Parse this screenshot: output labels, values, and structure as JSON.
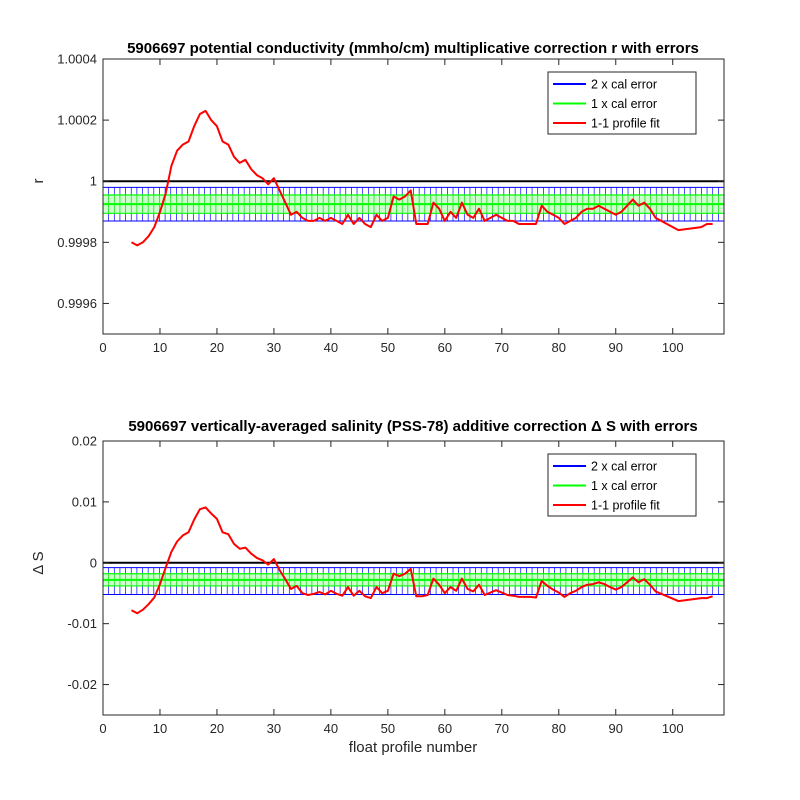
{
  "figure": {
    "xlabel": "float profile number"
  },
  "chart_data": [
    {
      "type": "line",
      "title": "5906697 potential conductivity (mmho/cm) multiplicative correction r with errors",
      "xlabel": "",
      "ylabel": "r",
      "xlim": [
        0,
        109
      ],
      "ylim": [
        0.9995,
        1.0004
      ],
      "xticks": [
        0,
        10,
        20,
        30,
        40,
        50,
        60,
        70,
        80,
        90,
        100
      ],
      "xtick_labels": [
        "0",
        "10",
        "20",
        "30",
        "40",
        "50",
        "60",
        "70",
        "80",
        "90",
        "100"
      ],
      "yticks": [
        0.9996,
        0.9998,
        1.0,
        1.0002,
        1.0004
      ],
      "ytick_labels": [
        "0.9996",
        "0.9998",
        "1",
        "1.0002",
        "1.0004"
      ],
      "reference_line": 1.0,
      "correction": 0.999925,
      "band_2x": [
        0.99987,
        0.99998
      ],
      "band_1x": [
        0.999895,
        0.999955
      ],
      "legend": {
        "position": "top-right",
        "entries": [
          {
            "label": "2 x cal error",
            "color": "#0000ff"
          },
          {
            "label": "1 x cal error",
            "color": "#00ff00"
          },
          {
            "label": "1-1 profile fit",
            "color": "#ff0000"
          }
        ]
      },
      "series": [
        {
          "color": "#ff0000",
          "x": [
            5,
            6,
            7,
            8,
            9,
            10,
            11,
            12,
            13,
            14,
            15,
            16,
            17,
            18,
            19,
            20,
            21,
            22,
            23,
            24,
            25,
            26,
            27,
            28,
            29,
            30,
            31,
            32,
            33,
            34,
            35,
            36,
            37,
            38,
            39,
            40,
            41,
            42,
            43,
            44,
            45,
            46,
            47,
            48,
            49,
            50,
            51,
            52,
            53,
            54,
            55,
            56,
            57,
            58,
            59,
            60,
            61,
            62,
            63,
            64,
            65,
            66,
            67,
            68,
            69,
            70,
            71,
            72,
            73,
            74,
            75,
            76,
            77,
            78,
            79,
            80,
            81,
            82,
            83,
            84,
            85,
            86,
            87,
            88,
            89,
            90,
            91,
            92,
            93,
            94,
            95,
            96,
            97,
            101,
            105,
            106,
            107
          ],
          "y": [
            0.9998,
            0.99979,
            0.9998,
            0.99982,
            0.99985,
            0.9999,
            0.99996,
            1.00005,
            1.0001,
            1.00012,
            1.00013,
            1.00018,
            1.00022,
            1.00023,
            1.0002,
            1.00018,
            1.00013,
            1.00012,
            1.00008,
            1.00006,
            1.00007,
            1.00004,
            1.00002,
            1.00001,
            0.99999,
            1.00001,
            0.99997,
            0.99993,
            0.99989,
            0.9999,
            0.99988,
            0.99987,
            0.99987,
            0.99988,
            0.99987,
            0.99988,
            0.99987,
            0.99986,
            0.99989,
            0.99986,
            0.99988,
            0.99986,
            0.99985,
            0.99989,
            0.99987,
            0.99988,
            0.99995,
            0.99994,
            0.99995,
            0.99997,
            0.99986,
            0.99986,
            0.99986,
            0.99993,
            0.99991,
            0.99987,
            0.9999,
            0.99988,
            0.99993,
            0.99989,
            0.99988,
            0.99991,
            0.99987,
            0.99988,
            0.99989,
            0.99988,
            0.99987,
            0.99987,
            0.99986,
            0.99986,
            0.99986,
            0.99986,
            0.99992,
            0.9999,
            0.99989,
            0.99988,
            0.99986,
            0.99987,
            0.99988,
            0.9999,
            0.99991,
            0.99991,
            0.99992,
            0.99991,
            0.9999,
            0.99989,
            0.9999,
            0.99992,
            0.99994,
            0.99992,
            0.99993,
            0.99991,
            0.99988,
            0.99984,
            0.99985,
            0.99986,
            0.99986
          ]
        }
      ]
    },
    {
      "type": "line",
      "title": "5906697 vertically-averaged salinity (PSS-78) additive correction Δ S with errors",
      "xlabel": "float profile number",
      "ylabel": "Δ S",
      "xlim": [
        0,
        109
      ],
      "ylim": [
        -0.025,
        0.02
      ],
      "xticks": [
        0,
        10,
        20,
        30,
        40,
        50,
        60,
        70,
        80,
        90,
        100
      ],
      "xtick_labels": [
        "0",
        "10",
        "20",
        "30",
        "40",
        "50",
        "60",
        "70",
        "80",
        "90",
        "100"
      ],
      "yticks": [
        -0.02,
        -0.01,
        0,
        0.01,
        0.02
      ],
      "ytick_labels": [
        "-0.02",
        "-0.01",
        "0",
        "0.01",
        "0.02"
      ],
      "reference_line": 0,
      "correction": -0.0028,
      "band_2x": [
        -0.0052,
        -0.0008
      ],
      "band_1x": [
        -0.0038,
        -0.0018
      ],
      "legend": {
        "position": "top-right",
        "entries": [
          {
            "label": "2 x cal error",
            "color": "#0000ff"
          },
          {
            "label": "1 x cal error",
            "color": "#00ff00"
          },
          {
            "label": "1-1 profile fit",
            "color": "#ff0000"
          }
        ]
      },
      "series": [
        {
          "color": "#ff0000",
          "x": [
            5,
            6,
            7,
            8,
            9,
            10,
            11,
            12,
            13,
            14,
            15,
            16,
            17,
            18,
            19,
            20,
            21,
            22,
            23,
            24,
            25,
            26,
            27,
            28,
            29,
            30,
            31,
            32,
            33,
            34,
            35,
            36,
            37,
            38,
            39,
            40,
            41,
            42,
            43,
            44,
            45,
            46,
            47,
            48,
            49,
            50,
            51,
            52,
            53,
            54,
            55,
            56,
            57,
            58,
            59,
            60,
            61,
            62,
            63,
            64,
            65,
            66,
            67,
            68,
            69,
            70,
            71,
            72,
            73,
            74,
            75,
            76,
            77,
            78,
            79,
            80,
            81,
            82,
            83,
            84,
            85,
            86,
            87,
            88,
            89,
            90,
            91,
            92,
            93,
            94,
            95,
            96,
            97,
            101,
            105,
            106,
            107
          ],
          "y": [
            -0.0078,
            -0.0083,
            -0.0077,
            -0.0068,
            -0.0057,
            -0.0035,
            -0.0008,
            0.0018,
            0.0035,
            0.0045,
            0.005,
            0.0071,
            0.0088,
            0.0091,
            0.0081,
            0.0072,
            0.005,
            0.0047,
            0.0031,
            0.0023,
            0.0025,
            0.0015,
            0.0008,
            0.0004,
            -0.0003,
            0.0006,
            -0.0012,
            -0.0027,
            -0.0043,
            -0.0038,
            -0.005,
            -0.0053,
            -0.0051,
            -0.0048,
            -0.0052,
            -0.0046,
            -0.0051,
            -0.0054,
            -0.004,
            -0.0054,
            -0.0046,
            -0.0055,
            -0.0058,
            -0.004,
            -0.005,
            -0.0046,
            -0.0018,
            -0.0022,
            -0.0018,
            -0.001,
            -0.0055,
            -0.0055,
            -0.0053,
            -0.0026,
            -0.0036,
            -0.005,
            -0.004,
            -0.0046,
            -0.0026,
            -0.0043,
            -0.0047,
            -0.0036,
            -0.0053,
            -0.0049,
            -0.0045,
            -0.0049,
            -0.0053,
            -0.0054,
            -0.0056,
            -0.0056,
            -0.0056,
            -0.0057,
            -0.003,
            -0.0038,
            -0.0044,
            -0.0049,
            -0.0056,
            -0.005,
            -0.0046,
            -0.004,
            -0.0036,
            -0.0035,
            -0.0032,
            -0.0035,
            -0.004,
            -0.0044,
            -0.004,
            -0.0032,
            -0.0024,
            -0.0032,
            -0.0027,
            -0.0036,
            -0.0047,
            -0.0063,
            -0.0058,
            -0.0058,
            -0.0055
          ]
        }
      ]
    }
  ]
}
